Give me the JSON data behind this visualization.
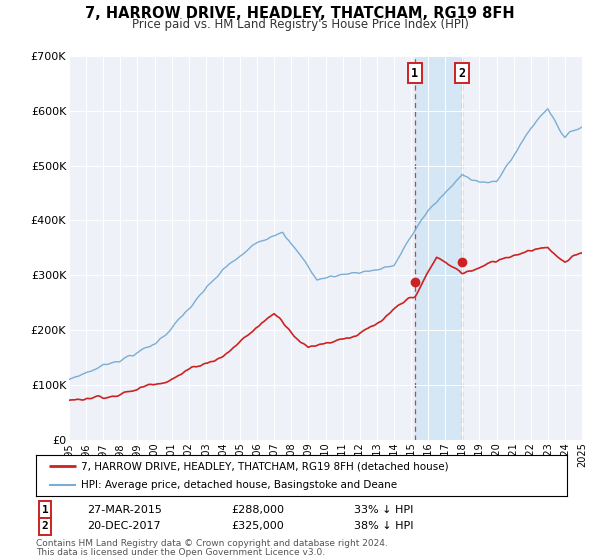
{
  "title": "7, HARROW DRIVE, HEADLEY, THATCHAM, RG19 8FH",
  "subtitle": "Price paid vs. HM Land Registry's House Price Index (HPI)",
  "hpi_label": "HPI: Average price, detached house, Basingstoke and Deane",
  "property_label": "7, HARROW DRIVE, HEADLEY, THATCHAM, RG19 8FH (detached house)",
  "hpi_color": "#7aadd4",
  "property_color": "#cc2222",
  "background_color": "#eef2f8",
  "shaded_region_color": "#d5e6f5",
  "ylim": [
    0,
    700000
  ],
  "yticks": [
    0,
    100000,
    200000,
    300000,
    400000,
    500000,
    600000,
    700000
  ],
  "ytick_labels": [
    "£0",
    "£100K",
    "£200K",
    "£300K",
    "£400K",
    "£500K",
    "£600K",
    "£700K"
  ],
  "sale1": {
    "date_num": 2015.22,
    "price": 288000,
    "label": "1",
    "date_str": "27-MAR-2015",
    "pct": "33%"
  },
  "sale2": {
    "date_num": 2017.97,
    "price": 325000,
    "label": "2",
    "date_str": "20-DEC-2017",
    "pct": "38%"
  },
  "footer1": "Contains HM Land Registry data © Crown copyright and database right 2024.",
  "footer2": "This data is licensed under the Open Government Licence v3.0."
}
